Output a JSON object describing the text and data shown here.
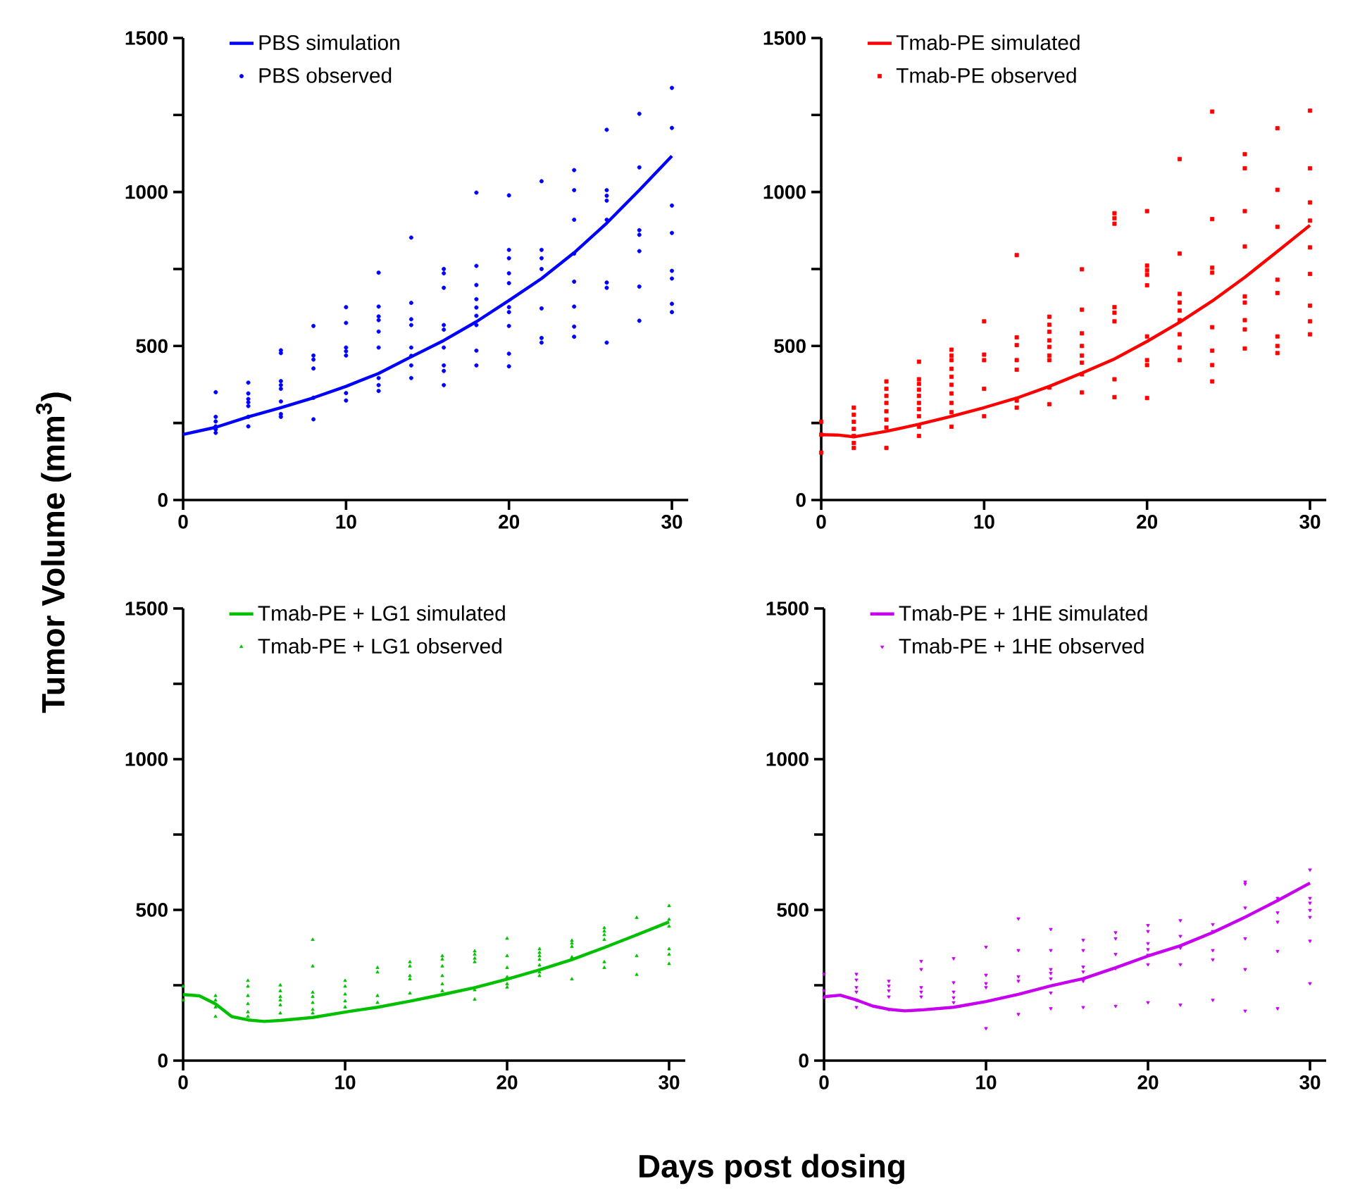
{
  "chart_data": [
    {
      "type": "line",
      "ylabel": "Tumor Volume (mm$^{3}$)",
      "legend": "top left",
      "xlim": [
        0,
        31
      ],
      "xticks": [
        0,
        10,
        20,
        30
      ],
      "ylim": [
        0,
        1500
      ],
      "yticks": [
        0,
        {
          "value": 250,
          "label": null
        },
        500,
        {
          "value": 750,
          "label": null
        },
        1000,
        {
          "value": 1250,
          "label": null
        },
        1500
      ],
      "series": [
        {
          "name": "PBS simulation",
          "color": "#0000ff",
          "marker": "none",
          "x": [
            0,
            2,
            4,
            6,
            8,
            10,
            12,
            14,
            16,
            18,
            20,
            22,
            24,
            26,
            28,
            30
          ],
          "values": [
            213,
            236,
            270,
            300,
            332,
            369,
            411,
            465,
            518,
            579,
            648,
            719,
            803,
            899,
            1006,
            1117
          ]
        },
        {
          "name": "PBS observed",
          "type": "scatter",
          "color": "#0000ff",
          "marker": "circle",
          "x": [
            2,
            2,
            2,
            2,
            2,
            2,
            4,
            4,
            4,
            4,
            4,
            4,
            4,
            6,
            6,
            6,
            6,
            6,
            6,
            6,
            6,
            8,
            8,
            8,
            8,
            8,
            8,
            10,
            10,
            10,
            10,
            10,
            10,
            10,
            12,
            12,
            12,
            12,
            12,
            12,
            12,
            12,
            12,
            14,
            14,
            14,
            14,
            14,
            14,
            14,
            14,
            16,
            16,
            16,
            16,
            16,
            16,
            16,
            16,
            16,
            18,
            18,
            18,
            18,
            18,
            18,
            18,
            18,
            18,
            20,
            20,
            20,
            20,
            20,
            20,
            20,
            20,
            20,
            20,
            22,
            22,
            22,
            22,
            22,
            22,
            22,
            24,
            24,
            24,
            24,
            24,
            24,
            24,
            24,
            26,
            26,
            26,
            26,
            26,
            26,
            26,
            26,
            28,
            28,
            28,
            28,
            28,
            28,
            28,
            30,
            30,
            30,
            30,
            30,
            30,
            30,
            30
          ],
          "values": [
            350,
            270,
            255,
            239,
            229,
            218,
            381,
            346,
            328,
            317,
            305,
            270,
            239,
            486,
            477,
            386,
            373,
            361,
            320,
            279,
            270,
            565,
            469,
            456,
            427,
            332,
            262,
            626,
            575,
            495,
            483,
            469,
            347,
            323,
            738,
            628,
            596,
            584,
            547,
            495,
            396,
            373,
            354,
            852,
            640,
            587,
            568,
            495,
            468,
            437,
            396,
            750,
            736,
            689,
            568,
            553,
            495,
            437,
            419,
            373,
            998,
            760,
            698,
            652,
            625,
            598,
            568,
            485,
            437,
            989,
            812,
            785,
            736,
            704,
            626,
            610,
            565,
            475,
            434,
            1035,
            812,
            785,
            750,
            622,
            526,
            511,
            1071,
            1006,
            910,
            800,
            709,
            628,
            563,
            530,
            1202,
            1006,
            988,
            972,
            910,
            706,
            689,
            511,
            1254,
            1080,
            876,
            861,
            808,
            693,
            582,
            1338,
            1208,
            956,
            867,
            744,
            719,
            637,
            610
          ]
        }
      ]
    },
    {
      "type": "line",
      "legend": "top left",
      "xlim": [
        0,
        31
      ],
      "xticks": [
        0,
        10,
        20,
        30
      ],
      "ylim": [
        0,
        1500
      ],
      "yticks": [
        0,
        {
          "value": 250,
          "label": null
        },
        500,
        {
          "value": 750,
          "label": null
        },
        1000,
        {
          "value": 1250,
          "label": null
        },
        1500
      ],
      "series": [
        {
          "name": "Tmab-PE simulated",
          "color": "#ff0000",
          "marker": "none",
          "x": [
            0,
            1,
            2,
            4,
            6,
            8,
            10,
            12,
            14,
            16,
            18,
            20,
            22,
            24,
            26,
            28,
            30
          ],
          "values": [
            212,
            211,
            205,
            223,
            246,
            272,
            300,
            331,
            369,
            412,
            458,
            515,
            577,
            646,
            723,
            807,
            892
          ]
        },
        {
          "name": "Tmab-PE observed",
          "type": "scatter",
          "color": "#ff0000",
          "marker": "square",
          "x": [
            0,
            0,
            0,
            2,
            2,
            2,
            2,
            2,
            2,
            2,
            4,
            4,
            4,
            4,
            4,
            4,
            4,
            4,
            6,
            6,
            6,
            6,
            6,
            6,
            6,
            6,
            6,
            6,
            8,
            8,
            8,
            8,
            8,
            8,
            8,
            8,
            8,
            8,
            10,
            10,
            10,
            10,
            10,
            12,
            12,
            12,
            12,
            12,
            12,
            12,
            14,
            14,
            14,
            14,
            14,
            14,
            14,
            14,
            14,
            16,
            16,
            16,
            16,
            16,
            16,
            16,
            16,
            18,
            18,
            18,
            18,
            18,
            18,
            18,
            18,
            20,
            20,
            20,
            20,
            20,
            20,
            20,
            20,
            20,
            22,
            22,
            22,
            22,
            22,
            22,
            22,
            22,
            22,
            24,
            24,
            24,
            24,
            24,
            24,
            24,
            24,
            26,
            26,
            26,
            26,
            26,
            26,
            26,
            26,
            26,
            28,
            28,
            28,
            28,
            28,
            28,
            28,
            28,
            30,
            30,
            30,
            30,
            30,
            30,
            30,
            30,
            30
          ],
          "values": [
            254,
            212,
            154,
            300,
            277,
            254,
            231,
            208,
            185,
            169,
            385,
            361,
            338,
            315,
            288,
            261,
            235,
            169,
            449,
            392,
            377,
            358,
            338,
            315,
            295,
            272,
            238,
            208,
            488,
            469,
            454,
            426,
            400,
            374,
            346,
            315,
            285,
            238,
            580,
            472,
            454,
            361,
            272,
            795,
            528,
            503,
            454,
            423,
            323,
            300,
            595,
            569,
            546,
            518,
            497,
            469,
            454,
            365,
            311,
            749,
            618,
            541,
            500,
            469,
            446,
            408,
            349,
            931,
            915,
            897,
            626,
            608,
            580,
            392,
            334,
            938,
            761,
            746,
            731,
            697,
            531,
            454,
            438,
            331,
            1107,
            800,
            669,
            641,
            615,
            584,
            538,
            495,
            454,
            1261,
            912,
            754,
            738,
            561,
            485,
            438,
            385,
            1123,
            1077,
            938,
            823,
            661,
            641,
            584,
            554,
            492,
            1207,
            1007,
            887,
            715,
            672,
            531,
            500,
            477,
            1264,
            1077,
            966,
            907,
            820,
            734,
            631,
            580,
            538
          ]
        }
      ]
    },
    {
      "type": "line",
      "xlabel": "Days post dosing",
      "legend": "top left",
      "xlim": [
        0,
        31
      ],
      "xticks": [
        0,
        10,
        20,
        30
      ],
      "ylim": [
        0,
        1500
      ],
      "yticks": [
        0,
        {
          "value": 250,
          "label": null
        },
        500,
        {
          "value": 750,
          "label": null
        },
        1000,
        {
          "value": 1250,
          "label": null
        },
        1500
      ],
      "series": [
        {
          "name": "Tmab-PE + LG1 simulated",
          "color": "#00c000",
          "marker": "none",
          "x": [
            0,
            1,
            2,
            3,
            4,
            5,
            6,
            8,
            10,
            12,
            14,
            16,
            18,
            20,
            22,
            24,
            26,
            28,
            30
          ],
          "values": [
            219,
            215,
            188,
            146,
            135,
            130,
            133,
            143,
            161,
            177,
            197,
            219,
            242,
            270,
            301,
            335,
            375,
            417,
            460
          ]
        },
        {
          "name": "Tmab-PE + LG1 observed",
          "type": "scatter",
          "color": "#00c000",
          "marker": "triangle",
          "x": [
            0,
            0,
            2,
            2,
            2,
            2,
            4,
            4,
            4,
            4,
            4,
            4,
            6,
            6,
            6,
            6,
            6,
            6,
            8,
            8,
            8,
            8,
            8,
            8,
            8,
            10,
            10,
            10,
            10,
            10,
            12,
            12,
            12,
            12,
            14,
            14,
            14,
            14,
            14,
            16,
            16,
            16,
            16,
            16,
            16,
            18,
            18,
            18,
            18,
            18,
            18,
            20,
            20,
            20,
            20,
            20,
            20,
            22,
            22,
            22,
            22,
            22,
            22,
            22,
            24,
            24,
            24,
            24,
            24,
            26,
            26,
            26,
            26,
            26,
            26,
            28,
            28,
            28,
            28,
            30,
            30,
            30,
            30,
            30,
            30
          ],
          "values": [
            246,
            200,
            215,
            200,
            177,
            146,
            265,
            246,
            215,
            188,
            161,
            146,
            250,
            231,
            212,
            200,
            184,
            157,
            401,
            313,
            226,
            212,
            192,
            169,
            157,
            265,
            246,
            220,
            197,
            177,
            308,
            293,
            215,
            192,
            327,
            313,
            281,
            270,
            223,
            347,
            336,
            313,
            281,
            254,
            231,
            363,
            352,
            339,
            327,
            234,
            203,
            405,
            347,
            308,
            277,
            254,
            243,
            370,
            358,
            347,
            335,
            316,
            293,
            281,
            398,
            389,
            378,
            343,
            270,
            440,
            429,
            417,
            401,
            327,
            308,
            474,
            417,
            347,
            285,
            513,
            468,
            445,
            370,
            352,
            321
          ]
        }
      ]
    },
    {
      "type": "line",
      "legend": "top left",
      "xlim": [
        0,
        31
      ],
      "xticks": [
        0,
        10,
        20,
        30
      ],
      "ylim": [
        0,
        1500
      ],
      "yticks": [
        0,
        {
          "value": 250,
          "label": null
        },
        500,
        {
          "value": 750,
          "label": null
        },
        1000,
        {
          "value": 1250,
          "label": null
        },
        1500
      ],
      "series": [
        {
          "name": "Tmab-PE + 1HE simulated",
          "color": "#c800f0",
          "marker": "none",
          "x": [
            0,
            1,
            2,
            3,
            4,
            5,
            6,
            8,
            10,
            12,
            14,
            16,
            18,
            20,
            22,
            24,
            26,
            28,
            30
          ],
          "values": [
            212,
            217,
            201,
            181,
            170,
            165,
            168,
            177,
            196,
            220,
            248,
            272,
            308,
            347,
            381,
            425,
            476,
            531,
            589
          ]
        },
        {
          "name": "Tmab-PE + 1HE observed",
          "type": "scatter",
          "color": "#c800f0",
          "marker": "triangle",
          "x": [
            0,
            0,
            0,
            2,
            2,
            2,
            2,
            2,
            2,
            4,
            4,
            4,
            4,
            4,
            6,
            6,
            6,
            6,
            6,
            8,
            8,
            8,
            8,
            8,
            10,
            10,
            10,
            10,
            10,
            12,
            12,
            12,
            12,
            12,
            14,
            14,
            14,
            14,
            14,
            14,
            14,
            16,
            16,
            16,
            16,
            16,
            16,
            18,
            18,
            18,
            18,
            18,
            20,
            20,
            20,
            20,
            20,
            20,
            20,
            22,
            22,
            22,
            22,
            22,
            24,
            24,
            24,
            24,
            24,
            26,
            26,
            26,
            26,
            26,
            26,
            28,
            28,
            28,
            28,
            28,
            30,
            30,
            30,
            30,
            30,
            30,
            30
          ],
          "values": [
            287,
            232,
            209,
            287,
            268,
            243,
            228,
            201,
            177,
            264,
            248,
            232,
            212,
            170,
            330,
            303,
            243,
            228,
            212,
            339,
            259,
            228,
            209,
            193,
            377,
            284,
            256,
            243,
            107,
            471,
            366,
            279,
            264,
            154,
            436,
            366,
            303,
            290,
            272,
            225,
            173,
            400,
            366,
            311,
            295,
            264,
            177,
            425,
            405,
            353,
            306,
            181,
            449,
            429,
            389,
            369,
            350,
            319,
            193,
            465,
            413,
            374,
            319,
            185,
            452,
            429,
            366,
            335,
            201,
            593,
            586,
            507,
            405,
            303,
            165,
            539,
            491,
            460,
            363,
            173,
            633,
            539,
            523,
            499,
            476,
            397,
            256
          ]
        }
      ]
    }
  ]
}
